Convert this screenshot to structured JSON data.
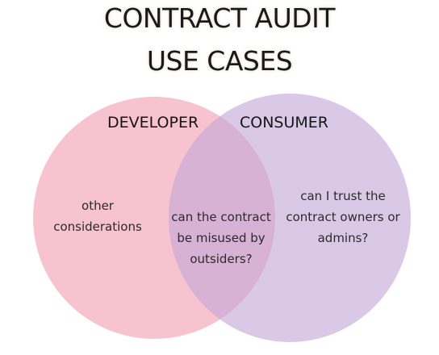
{
  "title": {
    "line1": "CONTRACT AUDIT",
    "line2": "USE CASES"
  },
  "sets": {
    "left": {
      "label": "DEVELOPER",
      "color": "#f3acbd",
      "text_lines": [
        "other",
        "considerations"
      ]
    },
    "right": {
      "label": "CONSUMER",
      "color": "#c4a8d6",
      "text_lines": [
        "can I trust the",
        "contract owners or",
        "admins?"
      ]
    },
    "intersection": {
      "text_lines": [
        "can the contract",
        "be misused by",
        "outsiders?"
      ]
    }
  }
}
